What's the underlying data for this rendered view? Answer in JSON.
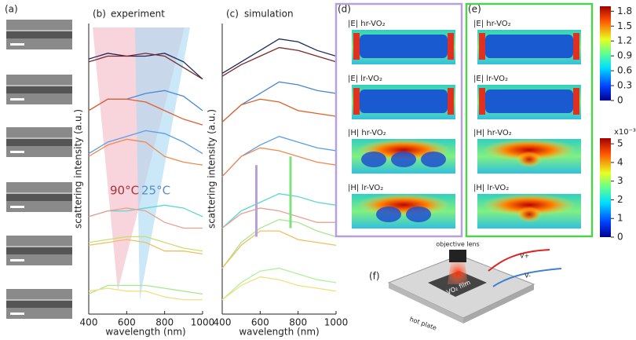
{
  "panel_a": {
    "label": "(a)"
  },
  "chart_data": [
    {
      "type": "line",
      "panel": "(b)",
      "title": "experiment",
      "xlabel": "wavelength (nm)",
      "ylabel": "scattering intensity (a.u.)",
      "x": [
        400,
        500,
        600,
        700,
        800,
        900,
        1000
      ],
      "xlim": [
        400,
        1000
      ],
      "ylim": [
        0,
        100
      ],
      "xticks": [
        400,
        600,
        800,
        1000
      ],
      "annotations": [
        {
          "text": "90°C",
          "color": "#a8323e"
        },
        {
          "text": "25°C",
          "color": "#5b8cc4"
        }
      ],
      "series": [
        {
          "color": "#1f2a5c",
          "values": [
            89,
            91,
            90,
            90,
            91,
            88,
            82
          ]
        },
        {
          "color": "#7a2a2a",
          "values": [
            88,
            90,
            90,
            91,
            90,
            86,
            82
          ]
        },
        {
          "color": "#4a86d8",
          "values": [
            71,
            75,
            75,
            77,
            78,
            76,
            71
          ]
        },
        {
          "color": "#e0602a",
          "values": [
            71,
            75,
            75,
            74,
            71,
            68,
            66
          ]
        },
        {
          "color": "#5a9ee8",
          "values": [
            56,
            60,
            62,
            64,
            63,
            60,
            56
          ]
        },
        {
          "color": "#f08a50",
          "values": [
            55,
            59,
            61,
            60,
            55,
            53,
            52
          ]
        },
        {
          "color": "#5ad8d0",
          "values": [
            34,
            36,
            36,
            37,
            38,
            37,
            34
          ]
        },
        {
          "color": "#e8a090",
          "values": [
            34,
            36,
            37,
            36,
            32,
            30,
            30
          ]
        },
        {
          "color": "#c8e070",
          "values": [
            25,
            26,
            27,
            27,
            25,
            23,
            22
          ]
        },
        {
          "color": "#f0c060",
          "values": [
            24,
            25,
            26,
            25,
            22,
            22,
            21
          ]
        },
        {
          "color": "#a8e890",
          "values": [
            7,
            10,
            10,
            10,
            9,
            8,
            7
          ]
        },
        {
          "color": "#f0e080",
          "values": [
            8,
            9,
            8,
            8,
            6,
            5,
            5
          ]
        }
      ]
    },
    {
      "type": "line",
      "panel": "(c)",
      "title": "simulation",
      "xlabel": "wavelength (nm)",
      "ylabel": "scattering intensity (a.u.)",
      "x": [
        400,
        500,
        600,
        700,
        800,
        900,
        1000
      ],
      "xlim": [
        400,
        1000
      ],
      "ylim": [
        0,
        100
      ],
      "xticks": [
        400,
        600,
        800,
        1000
      ],
      "markers": [
        {
          "x": 580,
          "y": [
            27,
            52
          ],
          "color": "#b8a0d8"
        },
        {
          "x": 760,
          "y": [
            30,
            55
          ],
          "color": "#80e080"
        }
      ],
      "series": [
        {
          "color": "#1f2a5c",
          "values": [
            84,
            88,
            92,
            96,
            95,
            92,
            90
          ]
        },
        {
          "color": "#7a2a2a",
          "values": [
            83,
            87,
            90,
            93,
            92,
            90,
            88
          ]
        },
        {
          "color": "#4a86d8",
          "values": [
            67,
            73,
            77,
            81,
            80,
            78,
            77
          ]
        },
        {
          "color": "#e0602a",
          "values": [
            67,
            73,
            75,
            74,
            71,
            70,
            69
          ]
        },
        {
          "color": "#5a9ee8",
          "values": [
            48,
            55,
            59,
            62,
            60,
            58,
            57
          ]
        },
        {
          "color": "#f08a50",
          "values": [
            48,
            55,
            58,
            57,
            55,
            53,
            52
          ]
        },
        {
          "color": "#5ad8d0",
          "values": [
            30,
            36,
            39,
            42,
            41,
            39,
            38
          ]
        },
        {
          "color": "#e8a090",
          "values": [
            30,
            35,
            37,
            36,
            34,
            32,
            32
          ]
        },
        {
          "color": "#a8e890",
          "values": [
            16,
            25,
            30,
            33,
            32,
            29,
            27
          ]
        },
        {
          "color": "#f0c060",
          "values": [
            16,
            24,
            29,
            29,
            26,
            25,
            24
          ]
        },
        {
          "color": "#b0f0a0",
          "values": [
            5,
            11,
            15,
            16,
            14,
            12,
            11
          ]
        },
        {
          "color": "#f0e080",
          "values": [
            5,
            10,
            13,
            12,
            10,
            9,
            8
          ]
        }
      ]
    }
  ],
  "field_maps": {
    "d": {
      "label": "(d)",
      "maps": [
        "|E|  hr-VO₂",
        "|E|  lr-VO₂",
        "|H|  hr-VO₂",
        "|H|  lr-VO₂"
      ]
    },
    "e": {
      "label": "(e)",
      "maps": [
        "|E|  hr-VO₂",
        "|E|  lr-VO₂",
        "|H|  hr-VO₂",
        "|H|  lr-VO₂"
      ]
    }
  },
  "colorbars": [
    {
      "ylim": [
        0,
        1.9
      ],
      "yticks": [
        0,
        0.3,
        0.6,
        0.9,
        1.2,
        1.5,
        1.8
      ]
    },
    {
      "ylim": [
        0,
        5.3
      ],
      "yticks": [
        0,
        1,
        2,
        3,
        4,
        5
      ],
      "unit": "x10⁻³"
    }
  ],
  "setup": {
    "label": "(f)",
    "objective": "objective lens",
    "v_plus": "V+",
    "v_minus": "V-",
    "film": "VO₂ film",
    "plate": "hot plate"
  }
}
